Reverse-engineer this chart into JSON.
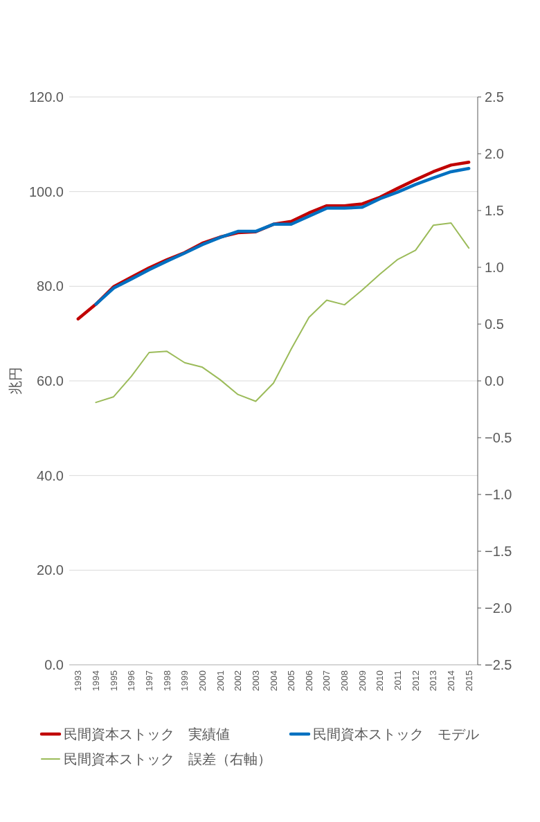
{
  "chart_data": {
    "type": "line",
    "ylabel": "兆円",
    "categories": [
      "1993",
      "1994",
      "1995",
      "1996",
      "1997",
      "1998",
      "1999",
      "2000",
      "2001",
      "2002",
      "2003",
      "2004",
      "2005",
      "2006",
      "2007",
      "2008",
      "2009",
      "2010",
      "2011",
      "2012",
      "2013",
      "2014",
      "2015"
    ],
    "series": [
      {
        "name": "民間資本ストック　実績値",
        "color": "#c00000",
        "values": [
          73.1,
          76.2,
          79.9,
          81.9,
          83.9,
          85.6,
          87.1,
          89.1,
          90.4,
          91.3,
          91.5,
          93.1,
          93.7,
          95.5,
          97.0,
          97.0,
          97.4,
          98.8,
          100.7,
          102.5,
          104.2,
          105.6,
          106.2
        ]
      },
      {
        "name": "民間資本ストック　モデル",
        "color": "#0070c0",
        "values": [
          null,
          76.2,
          79.6,
          81.5,
          83.5,
          85.3,
          87.0,
          88.8,
          90.3,
          91.6,
          91.6,
          93.1,
          93.1,
          94.8,
          96.5,
          96.5,
          96.7,
          98.5,
          99.9,
          101.5,
          102.9,
          104.2,
          104.9
        ]
      },
      {
        "name": "民間資本ストック　誤差（右軸）",
        "color": "#9bbb59",
        "axis": "y2",
        "values": [
          null,
          -0.19,
          -0.14,
          0.04,
          0.25,
          0.26,
          0.16,
          0.12,
          0.01,
          -0.12,
          -0.18,
          -0.02,
          0.28,
          0.56,
          0.71,
          0.67,
          0.8,
          0.94,
          1.07,
          1.15,
          1.37,
          1.39,
          1.17
        ]
      }
    ],
    "ylim": [
      0,
      120
    ],
    "yticks": [
      {
        "value": 0,
        "label": "0.0"
      },
      {
        "value": 20,
        "label": "20.0"
      },
      {
        "value": 40,
        "label": "40.0"
      },
      {
        "value": 60,
        "label": "60.0"
      },
      {
        "value": 80,
        "label": "80.0"
      },
      {
        "value": 100,
        "label": "100.0"
      },
      {
        "value": 120,
        "label": "120.0"
      }
    ],
    "y2lim": [
      -2.5,
      2.5
    ],
    "y2ticks": [
      {
        "value": -2.5,
        "label": "−2.5"
      },
      {
        "value": -2,
        "label": "−2.0"
      },
      {
        "value": -1.5,
        "label": "−1.5"
      },
      {
        "value": -1,
        "label": "−1.0"
      },
      {
        "value": -0.5,
        "label": "−0.5"
      },
      {
        "value": 0,
        "label": "0.0"
      },
      {
        "value": 0.5,
        "label": "0.5"
      },
      {
        "value": 1,
        "label": "1.0"
      },
      {
        "value": 1.5,
        "label": "1.5"
      },
      {
        "value": 2,
        "label": "2.0"
      },
      {
        "value": 2.5,
        "label": "2.5"
      }
    ],
    "grid": "y",
    "legend": "bottom"
  }
}
